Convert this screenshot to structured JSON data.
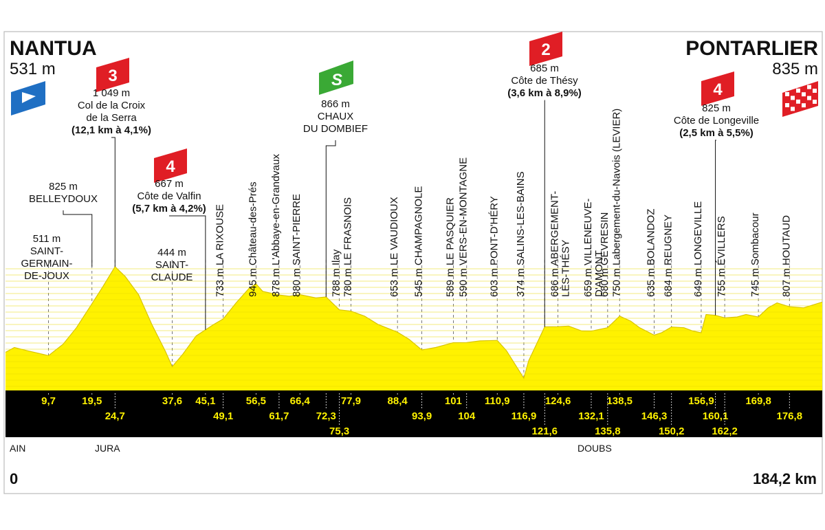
{
  "start": {
    "town": "NANTUA",
    "alt": "531 m"
  },
  "finish": {
    "town": "PONTARLIER",
    "alt": "835 m"
  },
  "distance_start": "0",
  "distance_total": "184,2 km",
  "departments": [
    "AIN",
    "JURA",
    "DOUBS"
  ],
  "climbs": [
    {
      "cat": "3",
      "alt": "1 049 m",
      "name_lines": [
        "Col de la Croix",
        "de la Serra"
      ],
      "detail": "(12,1 km à 4,1%)",
      "color": "#e01e25"
    },
    {
      "cat": "4",
      "alt": "667 m",
      "name_lines": [
        "Côte de Valfin"
      ],
      "detail": "(5,7 km à 4,2%)",
      "color": "#e01e25"
    },
    {
      "cat": "2",
      "alt": "685 m",
      "name_lines": [
        "Côte de Thésy"
      ],
      "detail": "(3,6 km à 8,9%)",
      "color": "#e01e25"
    },
    {
      "cat": "4",
      "alt": "825 m",
      "name_lines": [
        "Côte de Longeville"
      ],
      "detail": "(2,5 km à 5,5%)",
      "color": "#e01e25"
    }
  ],
  "sprint": {
    "label": "S",
    "alt": "866 m",
    "name_lines": [
      "CHAUX",
      "DU DOMBIEF"
    ],
    "color": "#3aa935"
  },
  "horizontal_labels": [
    {
      "lines": [
        "511 m",
        "SAINT-",
        "GERMAIN-",
        "DE-JOUX"
      ]
    },
    {
      "lines": [
        "825 m",
        "BELLEYDOUX"
      ]
    },
    {
      "lines": [
        "444 m",
        "SAINT-",
        "CLAUDE"
      ]
    }
  ],
  "vertical_labels": [
    {
      "alt": "733 m",
      "name": "LA RIXOUSE"
    },
    {
      "alt": "945 m",
      "name": "Château-des-Prés"
    },
    {
      "alt": "878 m",
      "name": "L'Abbaye-en-Grandvaux"
    },
    {
      "alt": "880 m",
      "name": "SAINT-PIERRE"
    },
    {
      "alt": "788 m",
      "name": "Ilay"
    },
    {
      "alt": "780 m",
      "name": "LE FRASNOIS"
    },
    {
      "alt": "653 m",
      "name": "LE VAUDIOUX"
    },
    {
      "alt": "545 m",
      "name": "CHAMPAGNOLE"
    },
    {
      "alt": "589 m",
      "name": "LE PASQUIER"
    },
    {
      "alt": "590 m",
      "name": "VERS-EN-MONTAGNE"
    },
    {
      "alt": "603 m",
      "name": "PONT-D'HÉRY"
    },
    {
      "alt": "374 m",
      "name": "SALINS-LES-BAINS"
    },
    {
      "alt": "686 m",
      "name": "ABERGEMENT-",
      "name2": "LÈS-THÉSY"
    },
    {
      "alt": "659 m",
      "name": "VILLENEUVE-",
      "name2": "D'AMONT"
    },
    {
      "alt": "680 m",
      "name": "GEVRESIN"
    },
    {
      "alt": "750 m",
      "name": "Labergement-du-Navois (LEVIER)"
    },
    {
      "alt": "635 m",
      "name": "BOLANDOZ"
    },
    {
      "alt": "684 m",
      "name": "REUGNEY"
    },
    {
      "alt": "649 m",
      "name": "LONGEVILLE"
    },
    {
      "alt": "755 m",
      "name": "ÉVILLERS"
    },
    {
      "alt": "745 m",
      "name": "Sombacour"
    },
    {
      "alt": "807 m",
      "name": "HOUTAUD"
    }
  ],
  "chart_data": {
    "type": "area",
    "xlabel": "",
    "ylabel": "",
    "fill_color": "#fff200",
    "band_color": "#000000",
    "km_label_color": "#fff200",
    "total_km": 184.2,
    "km_marks_row1": [
      "9,7",
      "19,5",
      "37,6",
      "45,1",
      "56,5",
      "66,4",
      "77,9",
      "88,4",
      "101",
      "110,9",
      "124,6",
      "138,5",
      "156,9",
      "169,8"
    ],
    "km_marks_row2": [
      "24,7",
      "49,1",
      "61,7",
      "72,3",
      "93,9",
      "104",
      "116,9",
      "132,1",
      "146,3",
      "160,1",
      "176,8"
    ],
    "km_marks_row3": [
      "75,3",
      "121,6",
      "135,8",
      "150,2",
      "162,2"
    ],
    "profile_km": [
      0,
      2,
      5,
      9.7,
      13,
      16,
      19.5,
      22,
      24.7,
      27,
      30,
      33,
      36,
      37.6,
      40,
      43,
      45.1,
      47,
      49.1,
      52,
      55,
      56.5,
      58,
      61.7,
      64,
      66.4,
      70,
      72.3,
      75.3,
      77.9,
      81,
      84,
      88.4,
      91,
      93.9,
      97,
      101,
      104,
      107,
      110.9,
      113,
      116.9,
      118,
      121.6,
      124.6,
      127,
      130,
      132.1,
      135.8,
      138.5,
      141,
      143,
      146.3,
      148,
      150.2,
      153,
      155,
      156.9,
      158,
      160.1,
      162.2,
      165,
      167,
      169.8,
      172,
      174,
      176.8,
      180,
      184.2
    ],
    "profile_alt": [
      531,
      560,
      540,
      511,
      580,
      680,
      825,
      930,
      1049,
      990,
      880,
      700,
      540,
      444,
      520,
      630,
      667,
      700,
      733,
      830,
      920,
      945,
      900,
      878,
      870,
      880,
      860,
      866,
      788,
      780,
      750,
      700,
      653,
      610,
      545,
      560,
      589,
      590,
      600,
      603,
      540,
      374,
      480,
      685,
      686,
      690,
      660,
      659,
      680,
      750,
      720,
      680,
      635,
      650,
      684,
      680,
      660,
      649,
      760,
      755,
      740,
      745,
      760,
      745,
      800,
      830,
      807,
      800,
      835
    ]
  }
}
